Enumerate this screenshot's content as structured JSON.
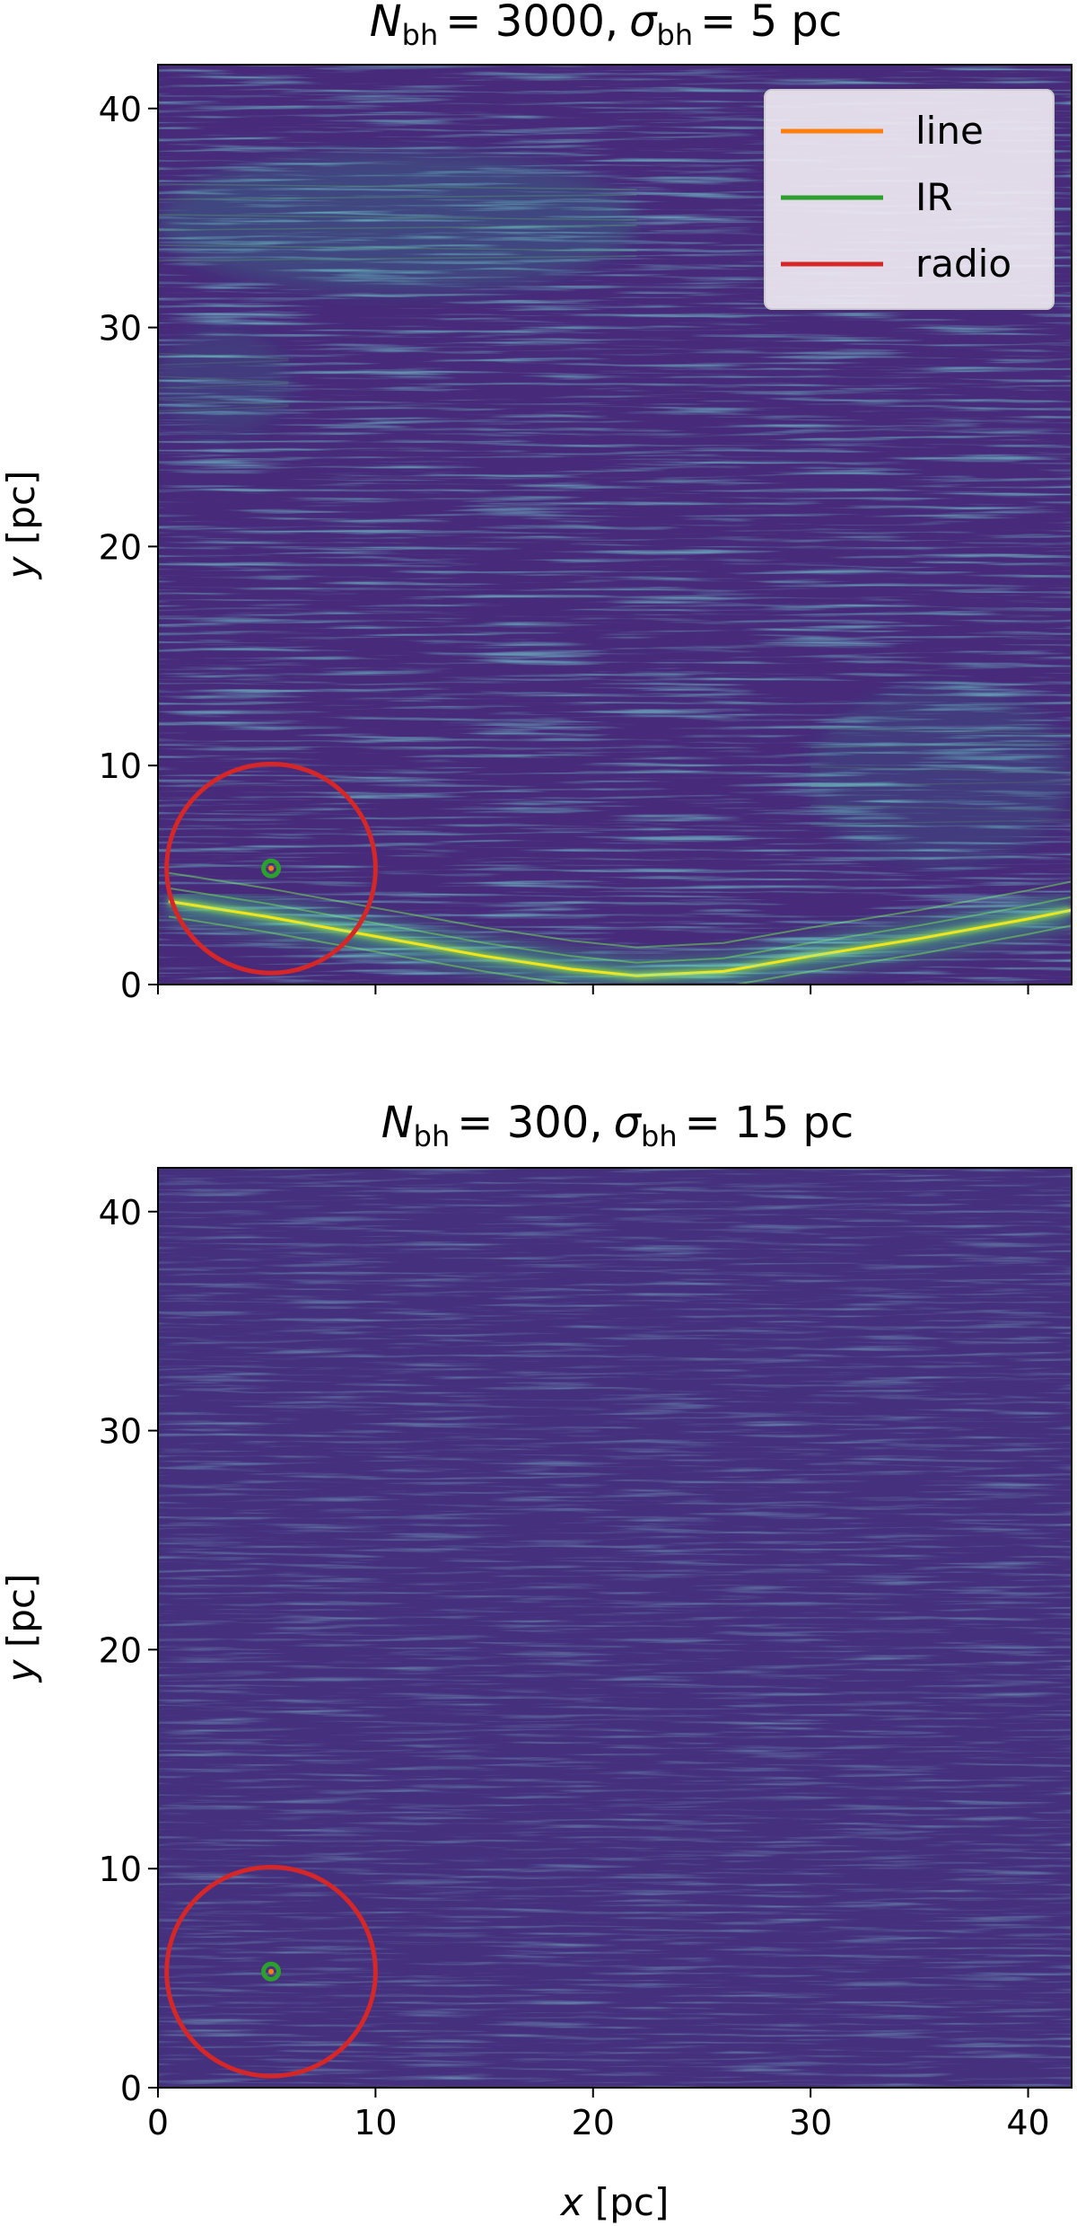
{
  "chart_data": [
    {
      "type": "heatmap",
      "title_parts": {
        "n_sym": "N",
        "n_sub": "bh",
        "n_val": "= 3000,",
        "s_sym": "σ",
        "s_sub": "bh",
        "s_val": "= 5 pc"
      },
      "xlabel": "",
      "ylabel_var": "y",
      "ylabel_unit": " [pc]",
      "xlim": [
        0,
        42
      ],
      "ylim": [
        0,
        42
      ],
      "xticks": [
        0,
        10,
        20,
        30,
        40
      ],
      "yticks": [
        "0",
        "10",
        "20",
        "30",
        "40"
      ],
      "xtick_labels_shown": false,
      "colormap": "viridis",
      "background_color": "#472a7a",
      "features": [
        {
          "kind": "bright-arc",
          "points": [
            [
              0.5,
              3.8
            ],
            [
              5,
              3.1
            ],
            [
              10,
              2.2
            ],
            [
              15,
              1.3
            ],
            [
              19,
              0.7
            ],
            [
              22,
              0.4
            ],
            [
              26,
              0.6
            ],
            [
              30,
              1.3
            ],
            [
              35,
              2.1
            ],
            [
              40,
              3.0
            ],
            [
              42,
              3.4
            ]
          ],
          "intensity": 1.0
        },
        {
          "kind": "streak-band",
          "y_center": 34.8,
          "x_range": [
            0,
            22
          ],
          "spread": 2.0,
          "intensity": 0.8
        },
        {
          "kind": "streak-band",
          "y_center": 27.5,
          "x_range": [
            0,
            6
          ],
          "spread": 1.5,
          "intensity": 0.5
        },
        {
          "kind": "streak-band",
          "y_center": 9.5,
          "x_range": [
            30,
            42
          ],
          "spread": 2.5,
          "intensity": 0.5
        }
      ],
      "markers": {
        "line": {
          "x": 5.2,
          "y": 5.3,
          "color": "#ff7f0e"
        },
        "IR": {
          "x": 5.2,
          "y": 5.3,
          "radius": 0.35,
          "color": "#2ca02c"
        },
        "radio": {
          "x": 5.2,
          "y": 5.3,
          "radius": 4.8,
          "color": "#d62728"
        }
      },
      "legend": {
        "position": "upper right",
        "entries": [
          {
            "label": "line",
            "color": "#ff7f0e"
          },
          {
            "label": "IR",
            "color": "#2ca02c"
          },
          {
            "label": "radio",
            "color": "#d62728"
          }
        ]
      }
    },
    {
      "type": "heatmap",
      "title_parts": {
        "n_sym": "N",
        "n_sub": "bh",
        "n_val": "= 300,",
        "s_sym": "σ",
        "s_sub": "bh",
        "s_val": "= 15 pc"
      },
      "xlabel_var": "x",
      "xlabel_unit": " [pc]",
      "ylabel_var": "y",
      "ylabel_unit": " [pc]",
      "xlim": [
        0,
        42
      ],
      "ylim": [
        0,
        42
      ],
      "xticks": [
        "0",
        "10",
        "20",
        "30",
        "40"
      ],
      "yticks": [
        "0",
        "10",
        "20",
        "30",
        "40"
      ],
      "xtick_labels_shown": true,
      "colormap": "viridis",
      "background_color": "#45307e",
      "features": [
        {
          "kind": "uniform-streaks",
          "intensity": 0.45
        }
      ],
      "markers": {
        "line": {
          "x": 5.2,
          "y": 5.3,
          "color": "#ff7f0e"
        },
        "IR": {
          "x": 5.2,
          "y": 5.3,
          "radius": 0.35,
          "color": "#2ca02c"
        },
        "radio": {
          "x": 5.2,
          "y": 5.3,
          "radius": 4.8,
          "color": "#d62728"
        }
      }
    }
  ]
}
